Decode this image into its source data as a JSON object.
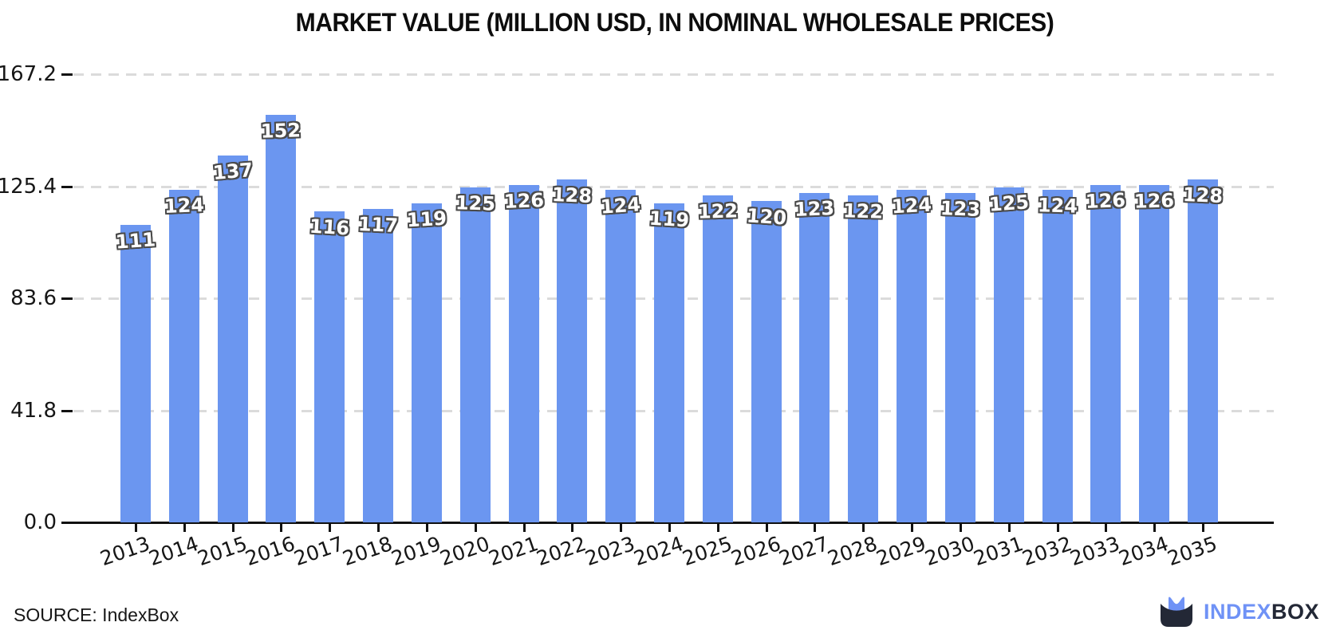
{
  "title": "MARKET VALUE (MILLION USD, IN NOMINAL WHOLESALE PRICES)",
  "source": {
    "label": "SOURCE: IndexBox"
  },
  "logo": {
    "part1": "INDEX",
    "part2": "BOX",
    "icon": "indexbox-basket-crown-icon"
  },
  "colors": {
    "bar": "#6b96f0",
    "gridline": "#dbdbdb",
    "axis": "#111111",
    "value_label_fill": "#ffffff",
    "value_label_outline": "#4a4a4a",
    "logo_blue": "#6f92f6",
    "logo_dark": "#232836"
  },
  "chart_data": {
    "type": "bar",
    "title": "MARKET VALUE (MILLION USD, IN NOMINAL WHOLESALE PRICES)",
    "xlabel": "",
    "ylabel": "",
    "categories": [
      "2013",
      "2014",
      "2015",
      "2016",
      "2017",
      "2018",
      "2019",
      "2020",
      "2021",
      "2022",
      "2023",
      "2024",
      "2025",
      "2026",
      "2027",
      "2028",
      "2029",
      "2030",
      "2031",
      "2032",
      "2033",
      "2034",
      "2035"
    ],
    "values": [
      111,
      124,
      137,
      152,
      116,
      117,
      119,
      125,
      126,
      128,
      124,
      119,
      122,
      120,
      123,
      122,
      124,
      123,
      125,
      124,
      126,
      126,
      128
    ],
    "bar_labels": true,
    "ylim": [
      0,
      167.2
    ],
    "yticks": [
      {
        "label": "0.0",
        "value": 0
      },
      {
        "label": "41.8",
        "value": 41.8
      },
      {
        "label": "83.6",
        "value": 83.6
      },
      {
        "label": "125.4",
        "value": 125.4
      },
      {
        "label": "167.2",
        "value": 167.2
      }
    ],
    "grid": "horizontal-dashed",
    "legend": "none",
    "style": "xkcd-hand-drawn, rotated x labels"
  }
}
